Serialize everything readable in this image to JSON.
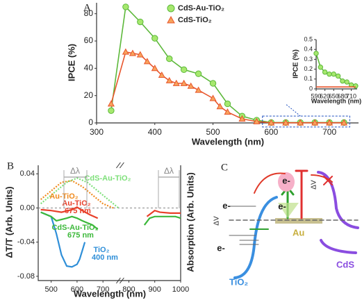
{
  "chart_data": [
    {
      "type": "line",
      "label": "A",
      "xlabel": "Wavelength (nm)",
      "ylabel": "IPCE (%)",
      "xlim": [
        300,
        750
      ],
      "xticks": [
        300,
        400,
        500,
        600,
        700
      ],
      "ylim": [
        0,
        88
      ],
      "yticks": [
        0,
        20,
        40,
        60,
        80
      ],
      "series": [
        {
          "name": "CdS-Au-TiO₂",
          "color": "#5cb83a",
          "fill": "#a6e86e",
          "marker": "circle",
          "x": [
            325,
            350,
            375,
            400,
            425,
            450,
            475,
            500,
            525,
            550,
            575,
            600,
            625,
            650,
            675,
            700,
            725
          ],
          "values": [
            9,
            85,
            74,
            62,
            47,
            39,
            36,
            29,
            14,
            5,
            2,
            0.3,
            0.3,
            0.3,
            0.3,
            0.3,
            0.3
          ]
        },
        {
          "name": "CdS-TiO₂",
          "color": "#e8552c",
          "fill": "#f7a35c",
          "marker": "triangle",
          "x": [
            325,
            350,
            362,
            375,
            387,
            400,
            412,
            425,
            437,
            450,
            462,
            475,
            500,
            512,
            525,
            550,
            575,
            600,
            625,
            650,
            675,
            700,
            725
          ],
          "values": [
            14,
            52,
            51,
            50,
            45,
            40,
            35,
            31,
            29,
            29,
            27,
            24,
            18,
            12,
            8,
            3,
            1,
            0.1,
            0.1,
            0.1,
            0.1,
            0.1,
            0.1
          ]
        }
      ]
    },
    {
      "type": "line",
      "xlabel": "Wavelength (nm)",
      "ylabel": "IPCE (%)",
      "xlim": [
        590,
        730
      ],
      "xticks": [
        590,
        620,
        650,
        680,
        710
      ],
      "ylim": [
        0,
        0.5
      ],
      "yticks": [
        0,
        0.1,
        0.2,
        0.3,
        0.4,
        0.5
      ],
      "series": [
        {
          "color": "#5cb83a",
          "fill": "#a6e86e",
          "marker": "circle",
          "x": [
            590,
            605,
            620,
            635,
            650,
            665,
            680,
            695,
            710,
            725
          ],
          "values": [
            0.36,
            0.22,
            0.17,
            0.15,
            0.15,
            0.13,
            0.08,
            0.07,
            0.04,
            0.03
          ]
        },
        {
          "color": "#e8552c",
          "fill": "#f7a35c",
          "marker": "none",
          "x": [
            590,
            610,
            630,
            650,
            670,
            690,
            710,
            725
          ],
          "values": [
            0.02,
            0.02,
            0.02,
            0.02,
            0.02,
            0.02,
            0.02,
            0.02
          ]
        }
      ]
    },
    {
      "type": "line",
      "label": "B",
      "xlabel": "Wavelength (nm)",
      "ylabel": "ΔT/T (Arb. Units)",
      "y2label": "Absorption (Arb. Units)",
      "xlim": [
        450,
        1000
      ],
      "xticks": [
        500,
        600,
        700,
        800,
        900,
        1000
      ],
      "ylim": [
        -0.085,
        0.05
      ],
      "yticks": [
        -0.08,
        -0.04,
        {
          "value": 0,
          "label": "0.00"
        },
        0.04
      ],
      "series": [
        {
          "color": "#f08a1c",
          "dash": true,
          "x": [
            460,
            500,
            540,
            580,
            620,
            660,
            700,
            740
          ],
          "values": [
            0.01,
            0.02,
            0.03,
            0.032,
            0.025,
            0.015,
            0.005,
            0
          ]
        },
        {
          "color": "#7ee07a",
          "dash": true,
          "x": [
            460,
            500,
            560,
            600,
            640,
            680,
            720,
            760
          ],
          "values": [
            0.005,
            0.015,
            0.03,
            0.035,
            0.03,
            0.02,
            0.01,
            0
          ]
        },
        {
          "color": "#2f8fd8",
          "x": [
            460,
            500,
            520,
            540,
            560,
            580,
            600,
            610,
            620,
            630
          ],
          "values": [
            -0.005,
            -0.01,
            -0.03,
            -0.055,
            -0.068,
            -0.069,
            -0.066,
            -0.06,
            -0.05,
            -0.04
          ]
        },
        {
          "color": "#e8402a",
          "x": [
            460,
            500,
            540,
            580,
            600,
            620,
            650,
            680,
            700,
            870,
            900,
            920,
            960,
            1000
          ],
          "values": [
            -0.002,
            -0.003,
            -0.005,
            -0.002,
            0.001,
            -0.003,
            -0.008,
            -0.012,
            null,
            -0.01,
            -0.003,
            -0.005,
            -0.006,
            -0.006
          ]
        },
        {
          "color": "#3cb83a",
          "x": [
            460,
            500,
            520,
            560,
            580,
            600,
            620,
            660,
            680,
            700,
            860,
            880,
            900,
            940,
            980,
            1000
          ],
          "values": [
            -0.005,
            -0.01,
            -0.015,
            -0.012,
            -0.01,
            -0.012,
            -0.015,
            -0.02,
            -0.025,
            null,
            -0.02,
            -0.012,
            -0.01,
            -0.01,
            -0.01,
            -0.012
          ]
        }
      ],
      "annotations": [
        {
          "text": "Δλ",
          "color": "#888888"
        },
        {
          "text": "Δλ",
          "color": "#888888"
        },
        {
          "text": "CdS-Au-TiO₂",
          "color": "#7ee07a"
        },
        {
          "text": "Au-TiO₂",
          "color": "#f08a1c"
        },
        {
          "text": "Au-TiO₂",
          "color": "#e8402a"
        },
        {
          "text": "675 nm",
          "color": "#e8402a"
        },
        {
          "text": "CdS-Au-TiO₂",
          "color": "#3cb83a"
        },
        {
          "text": "675 nm",
          "color": "#3cb83a"
        },
        {
          "text": "TiO₂",
          "color": "#2f8fd8"
        },
        {
          "text": "400 nm",
          "color": "#2f8fd8"
        }
      ]
    }
  ],
  "diagram": {
    "label": "C",
    "electrons": [
      "e-",
      "e-",
      "e-",
      "e-"
    ],
    "au": "Au",
    "cds": "CdS",
    "tio2": "TiO₂",
    "dv": [
      "ΔV",
      "ΔV"
    ]
  }
}
